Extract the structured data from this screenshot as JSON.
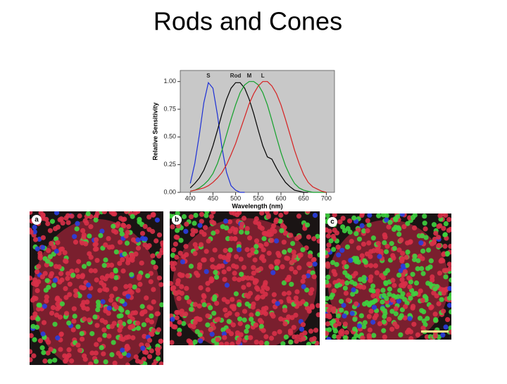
{
  "slide": {
    "title": "Rods and Cones"
  },
  "chart_data": {
    "type": "line",
    "xlabel": "Wavelength (nm)",
    "ylabel": "Relative Sensitivity",
    "xlim": [
      378,
      718
    ],
    "ylim": [
      0,
      1.1
    ],
    "xticks": [
      400,
      450,
      500,
      550,
      600,
      650,
      700
    ],
    "yticks": [
      {
        "value": 0,
        "label": "0.00"
      },
      {
        "value": 0.25,
        "label": "0.25"
      },
      {
        "value": 0.5,
        "label": "0.50"
      },
      {
        "value": 0.75,
        "label": "0.75"
      },
      {
        "value": 1,
        "label": "1.00"
      }
    ],
    "background": "#c8c8c8",
    "x": [
      400,
      410,
      420,
      430,
      440,
      450,
      460,
      470,
      480,
      490,
      500,
      510,
      520,
      530,
      540,
      550,
      560,
      570,
      580,
      590,
      600,
      610,
      620,
      630,
      640,
      650,
      660,
      670,
      680,
      690,
      700
    ],
    "series": [
      {
        "name": "S",
        "color": "#1c2fd6",
        "values": [
          0.08,
          0.26,
          0.52,
          0.81,
          0.99,
          0.94,
          0.7,
          0.4,
          0.18,
          0.06,
          0.02,
          0.0,
          0.0,
          null,
          null,
          null,
          null,
          null,
          null,
          null,
          null,
          null,
          null,
          null,
          null,
          null,
          null,
          null,
          null,
          null,
          null
        ]
      },
      {
        "name": "Rod",
        "color": "#000000",
        "values": [
          0.04,
          0.08,
          0.13,
          0.2,
          0.3,
          0.42,
          0.56,
          0.71,
          0.84,
          0.94,
          0.99,
          0.99,
          0.94,
          0.84,
          0.71,
          0.56,
          0.42,
          0.32,
          0.3,
          0.22,
          0.15,
          0.09,
          0.05,
          0.02,
          0.01,
          0.0,
          0.0,
          null,
          null,
          null,
          null
        ]
      },
      {
        "name": "M",
        "color": "#12a12a",
        "values": [
          0.01,
          0.02,
          0.04,
          0.07,
          0.11,
          0.17,
          0.26,
          0.38,
          0.52,
          0.66,
          0.79,
          0.9,
          0.97,
          1.0,
          1.0,
          0.97,
          0.9,
          0.79,
          0.65,
          0.5,
          0.36,
          0.24,
          0.15,
          0.08,
          0.04,
          0.02,
          0.01,
          0.0,
          0.0,
          0.0,
          0.0
        ]
      },
      {
        "name": "L",
        "color": "#d62020",
        "values": [
          0.01,
          0.02,
          0.03,
          0.04,
          0.06,
          0.09,
          0.13,
          0.18,
          0.25,
          0.34,
          0.44,
          0.56,
          0.68,
          0.8,
          0.89,
          0.96,
          1.0,
          1.0,
          0.96,
          0.89,
          0.79,
          0.66,
          0.52,
          0.38,
          0.26,
          0.16,
          0.09,
          0.05,
          0.03,
          0.01,
          0.0
        ]
      }
    ]
  },
  "panels": [
    {
      "label": "a"
    },
    {
      "label": "b"
    },
    {
      "label": "c"
    }
  ]
}
